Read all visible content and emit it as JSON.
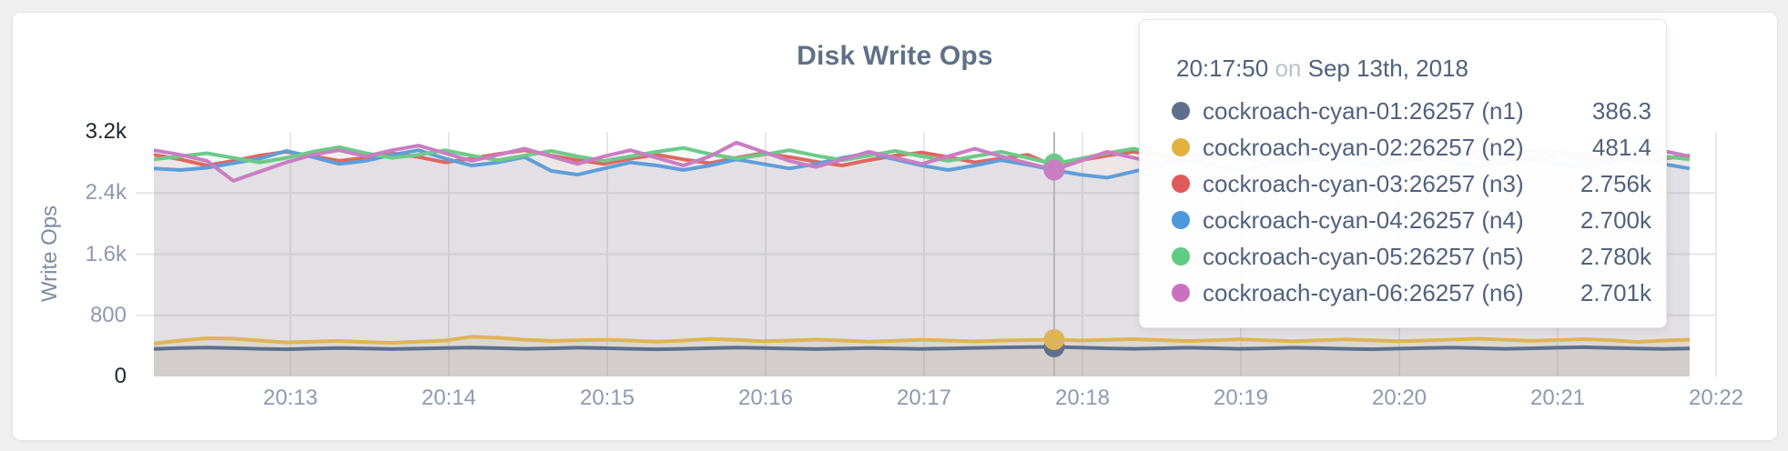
{
  "chart_data": {
    "type": "line",
    "title": "Disk Write Ops",
    "ylabel": "Write Ops",
    "xlabel": "",
    "ylim": [
      0,
      3200
    ],
    "grid": true,
    "x_ticks": [
      "20:13",
      "20:14",
      "20:15",
      "20:16",
      "20:17",
      "20:18",
      "20:19",
      "20:20",
      "20:21",
      "20:22"
    ],
    "y_ticks": [
      {
        "label": "0",
        "value": 0,
        "emph": true
      },
      {
        "label": "800",
        "value": 800,
        "emph": false
      },
      {
        "label": "1.6k",
        "value": 1600,
        "emph": false
      },
      {
        "label": "2.4k",
        "value": 2400,
        "emph": false
      },
      {
        "label": "3.2k",
        "value": 3200,
        "emph": true
      }
    ],
    "x_start_time": "20:12:10",
    "x_end_time": "20:21:50",
    "x_step_seconds": 10,
    "hover_index": 34,
    "hover_time": "20:17:50",
    "series": [
      {
        "name": "cockroach-cyan-01:26257 (n1)",
        "color": "#5e6f8d",
        "fill_opacity": 0.1,
        "values": [
          360,
          372,
          378,
          370,
          362,
          356,
          364,
          372,
          366,
          358,
          364,
          372,
          378,
          370,
          362,
          368,
          376,
          370,
          362,
          356,
          362,
          370,
          378,
          372,
          364,
          358,
          364,
          372,
          366,
          360,
          366,
          374,
          380,
          384,
          386.3,
          378,
          368,
          362,
          368,
          376,
          370,
          362,
          368,
          376,
          370,
          362,
          356,
          364,
          372,
          378,
          370,
          362,
          368,
          376,
          382,
          374,
          366,
          360,
          366
        ]
      },
      {
        "name": "cockroach-cyan-02:26257 (n2)",
        "color": "#dfb456",
        "fill_opacity": 0.14,
        "values": [
          430,
          470,
          500,
          495,
          470,
          445,
          455,
          465,
          450,
          440,
          455,
          470,
          520,
          505,
          480,
          465,
          472,
          480,
          470,
          455,
          470,
          490,
          478,
          462,
          470,
          482,
          470,
          456,
          468,
          480,
          470,
          458,
          470,
          476,
          481.4,
          470,
          478,
          488,
          476,
          464,
          474,
          486,
          474,
          462,
          472,
          484,
          472,
          460,
          470,
          482,
          494,
          480,
          466,
          476,
          488,
          476,
          452,
          470,
          482
        ]
      },
      {
        "name": "cockroach-cyan-03:26257 (n3)",
        "color": "#df6662",
        "fill_opacity": 0.08,
        "values": [
          2900,
          2840,
          2760,
          2820,
          2890,
          2940,
          2880,
          2820,
          2860,
          2920,
          2870,
          2800,
          2850,
          2910,
          2960,
          2890,
          2830,
          2780,
          2850,
          2900,
          2840,
          2790,
          2860,
          2920,
          2870,
          2810,
          2760,
          2830,
          2890,
          2930,
          2870,
          2800,
          2850,
          2900,
          2756,
          2830,
          2890,
          2940,
          2880,
          2820,
          2870,
          2910,
          2850,
          2790,
          2840,
          2900,
          2860,
          2800,
          2850,
          2910,
          2950,
          2880,
          2820,
          2870,
          2920,
          2860,
          2800,
          2850,
          2890
        ]
      },
      {
        "name": "cockroach-cyan-04:26257 (n4)",
        "color": "#5f9ed8",
        "fill_opacity": 0.08,
        "values": [
          2720,
          2700,
          2730,
          2790,
          2850,
          2950,
          2870,
          2780,
          2820,
          2900,
          2960,
          2850,
          2760,
          2800,
          2870,
          2690,
          2640,
          2720,
          2800,
          2760,
          2700,
          2760,
          2840,
          2780,
          2720,
          2780,
          2860,
          2920,
          2840,
          2760,
          2700,
          2760,
          2830,
          2770,
          2700,
          2640,
          2600,
          2680,
          2760,
          2820,
          2760,
          2700,
          2760,
          2840,
          2900,
          2820,
          2750,
          2810,
          2870,
          2800,
          2740,
          2800,
          2860,
          2790,
          2730,
          2790,
          2850,
          2780,
          2720
        ]
      },
      {
        "name": "cockroach-cyan-05:26257 (n5)",
        "color": "#6cca89",
        "fill_opacity": 0.08,
        "values": [
          2840,
          2880,
          2920,
          2860,
          2800,
          2860,
          2940,
          3000,
          2920,
          2860,
          2900,
          2960,
          2890,
          2830,
          2890,
          2950,
          2880,
          2820,
          2880,
          2940,
          2990,
          2910,
          2850,
          2900,
          2960,
          2890,
          2830,
          2890,
          2950,
          2880,
          2820,
          2880,
          2940,
          2860,
          2780,
          2850,
          2920,
          2980,
          2900,
          2840,
          2900,
          2960,
          2880,
          2820,
          2880,
          2940,
          2870,
          2810,
          2870,
          2930,
          2860,
          2900,
          2960,
          2890,
          2830,
          2890,
          2950,
          2880,
          2840
        ]
      },
      {
        "name": "cockroach-cyan-06:26257 (n6)",
        "color": "#c97dc2",
        "fill_opacity": 0.08,
        "values": [
          2960,
          2900,
          2820,
          2560,
          2680,
          2800,
          2900,
          2960,
          2880,
          2960,
          3020,
          2920,
          2820,
          2900,
          2980,
          2880,
          2780,
          2880,
          2960,
          2860,
          2760,
          2880,
          3060,
          2940,
          2820,
          2740,
          2840,
          2940,
          2860,
          2780,
          2880,
          2980,
          2880,
          2790,
          2701,
          2820,
          2940,
          2860,
          2780,
          2870,
          2960,
          2870,
          2780,
          2870,
          2960,
          3040,
          2920,
          2820,
          2900,
          2980,
          2880,
          2790,
          2880,
          2960,
          2870,
          2790,
          2870,
          2950,
          2880
        ]
      }
    ],
    "colors": {
      "grid": "#e7e7e7",
      "crosshair": "#b6b6b6",
      "axis_text": "#8d9aaf",
      "axis_text_emph": "#20252e",
      "title_text": "#5f7188"
    }
  },
  "tooltip": {
    "time": "20:17:50",
    "connector": "on",
    "date": "Sep 13th, 2018",
    "rows": [
      {
        "name": "cockroach-cyan-01:26257 (n1)",
        "value": "386.3",
        "color": "#5e6f8d"
      },
      {
        "name": "cockroach-cyan-02:26257 (n2)",
        "value": "481.4",
        "color": "#e2b23e"
      },
      {
        "name": "cockroach-cyan-03:26257 (n3)",
        "value": "2.756k",
        "color": "#e05a58"
      },
      {
        "name": "cockroach-cyan-04:26257 (n4)",
        "value": "2.700k",
        "color": "#4e97d9"
      },
      {
        "name": "cockroach-cyan-05:26257 (n5)",
        "value": "2.780k",
        "color": "#5ecc81"
      },
      {
        "name": "cockroach-cyan-06:26257 (n6)",
        "value": "2.701k",
        "color": "#cb70bf"
      }
    ]
  }
}
